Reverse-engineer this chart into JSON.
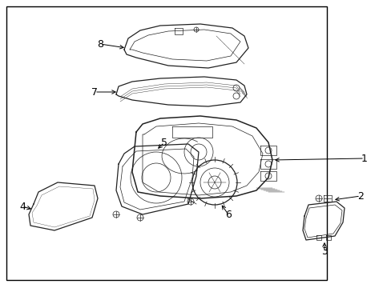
{
  "bg_color": "#ffffff",
  "border_color": "#000000",
  "line_color": "#222222",
  "text_color": "#000000",
  "font_size": 9,
  "lw_thin": 0.5,
  "lw_med": 0.9,
  "lw_thick": 1.1
}
